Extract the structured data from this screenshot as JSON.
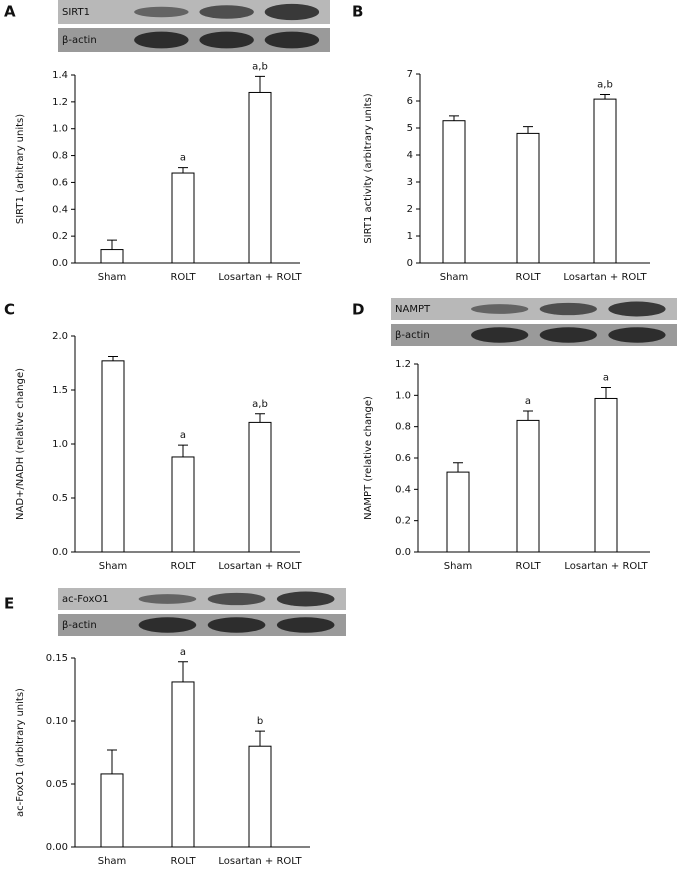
{
  "chart_data": [
    {
      "type": "bar",
      "panel": "A",
      "blot_labels": [
        "SIRT1",
        "β-actin"
      ],
      "y_label": "SIRT1 (arbitrary units)",
      "categories": [
        "Sham",
        "ROLT",
        "Losartan + ROLT"
      ],
      "values": [
        0.1,
        0.67,
        1.27
      ],
      "errors": [
        0.07,
        0.04,
        0.12
      ],
      "annotations": [
        null,
        "a",
        "a,b"
      ],
      "color": "#ffffff",
      "ylim": [
        0,
        1.4
      ],
      "yticks": [
        {
          "value": 0,
          "label": "0.0"
        },
        0.2,
        0.4,
        0.6,
        0.8,
        {
          "value": 1,
          "label": "1.0"
        },
        1.2,
        1.4
      ]
    },
    {
      "type": "bar",
      "panel": "B",
      "y_label": "SIRT1 activity (arbitrary units)",
      "categories": [
        "Sham",
        "ROLT",
        "Losartan + ROLT"
      ],
      "values": [
        5.27,
        4.8,
        6.07
      ],
      "errors": [
        0.18,
        0.25,
        0.17
      ],
      "annotations": [
        null,
        null,
        "a,b"
      ],
      "color": "#ffffff",
      "ylim": [
        0,
        7
      ],
      "yticks": [
        0,
        1,
        2,
        3,
        4,
        5,
        6,
        7
      ]
    },
    {
      "type": "bar",
      "panel": "C",
      "y_label": "NAD+/NADH (relative change)",
      "categories": [
        "Sham",
        "ROLT",
        "Losartan + ROLT"
      ],
      "values": [
        1.77,
        0.88,
        1.2
      ],
      "errors": [
        0.04,
        0.11,
        0.08
      ],
      "annotations": [
        null,
        "a",
        "a,b"
      ],
      "color": "#ffffff",
      "ylim": [
        0,
        2
      ],
      "yticks": [
        {
          "value": 0,
          "label": "0.0"
        },
        0.5,
        {
          "value": 1,
          "label": "1.0"
        },
        1.5,
        {
          "value": 2,
          "label": "2.0"
        }
      ]
    },
    {
      "type": "bar",
      "panel": "D",
      "blot_labels": [
        "NAMPT",
        "β-actin"
      ],
      "y_label": "NAMPT (relative change)",
      "categories": [
        "Sham",
        "ROLT",
        "Losartan + ROLT"
      ],
      "values": [
        0.51,
        0.84,
        0.98
      ],
      "errors": [
        0.06,
        0.06,
        0.07
      ],
      "annotations": [
        null,
        "a",
        "a"
      ],
      "color": "#ffffff",
      "ylim": [
        0,
        1.2
      ],
      "yticks": [
        {
          "value": 0,
          "label": "0.0"
        },
        0.2,
        0.4,
        0.6,
        0.8,
        {
          "value": 1,
          "label": "1.0"
        },
        1.2
      ]
    },
    {
      "type": "bar",
      "panel": "E",
      "blot_labels": [
        "ac-FoxO1",
        "β-actin"
      ],
      "y_label": "ac-FoxO1 (arbitrary units)",
      "categories": [
        "Sham",
        "ROLT",
        "Losartan + ROLT"
      ],
      "values": [
        0.058,
        0.131,
        0.08
      ],
      "errors": [
        0.019,
        0.016,
        0.012
      ],
      "annotations": [
        null,
        "a",
        "b"
      ],
      "color": "#ffffff",
      "ylim": [
        0,
        0.15
      ],
      "yticks": [
        {
          "value": 0,
          "label": "0.00"
        },
        0.05,
        {
          "value": 0.1,
          "label": "0.10"
        },
        0.15
      ]
    }
  ]
}
